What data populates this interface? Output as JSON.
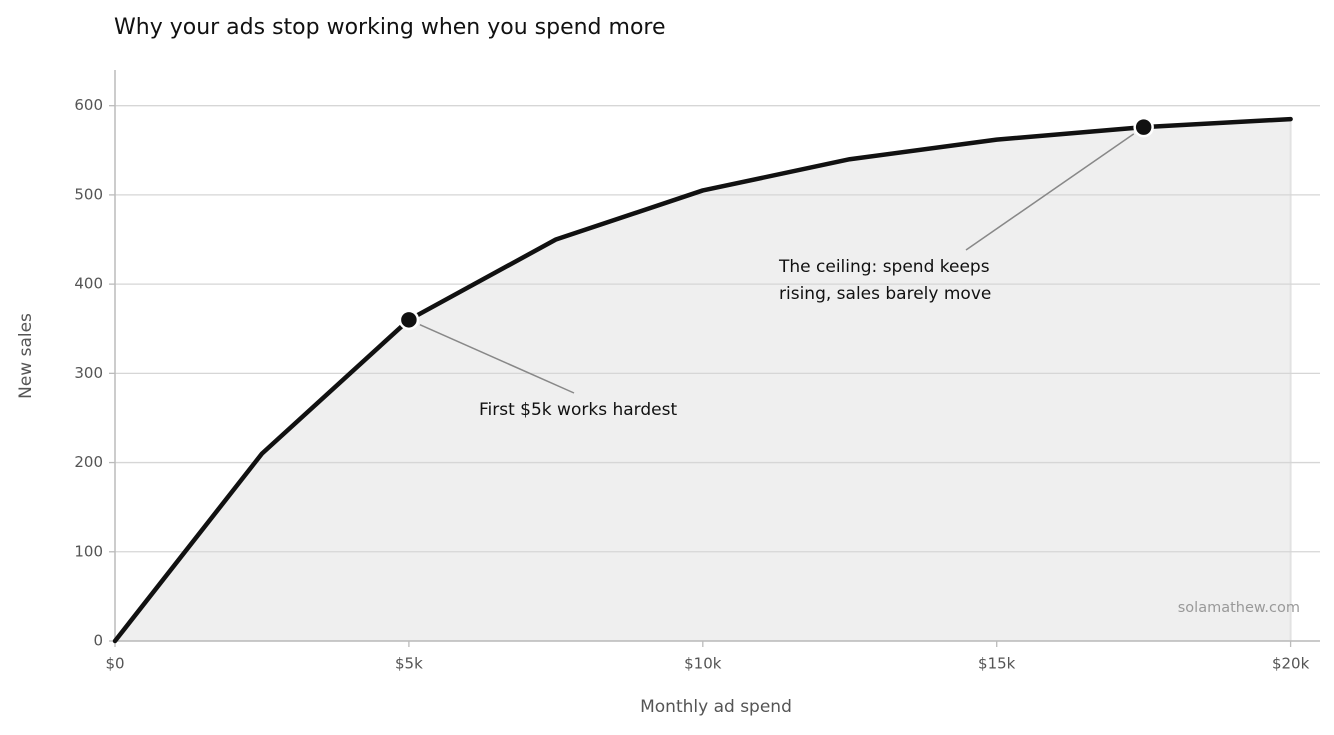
{
  "chart_data": {
    "type": "area-line",
    "title": "Why your ads stop working when you spend more",
    "xlabel": "Monthly ad spend",
    "ylabel": "New sales",
    "x": [
      0,
      2500,
      5000,
      7500,
      10000,
      12500,
      15000,
      17500,
      20000
    ],
    "values": [
      0,
      210,
      360,
      450,
      505,
      540,
      562,
      576,
      585
    ],
    "color": "#111111",
    "fill": "#efefef",
    "xlim": [
      0,
      20500
    ],
    "ylim": [
      0,
      640
    ],
    "xticks": [
      {
        "value": 0,
        "label": "$0"
      },
      {
        "value": 5000,
        "label": "$5k"
      },
      {
        "value": 10000,
        "label": "$10k"
      },
      {
        "value": 15000,
        "label": "$15k"
      },
      {
        "value": 20000,
        "label": "$20k"
      }
    ],
    "yticks": [
      0,
      100,
      200,
      300,
      400,
      500,
      600
    ],
    "grid": true,
    "annotations": [
      {
        "text": [
          "First $5k works hardest"
        ],
        "x": 5000,
        "y": 360
      },
      {
        "text": [
          "The ceiling: spend keeps",
          "rising, sales barely move"
        ],
        "x": 17500,
        "y": 576
      }
    ],
    "watermark": "solamathew.com"
  }
}
